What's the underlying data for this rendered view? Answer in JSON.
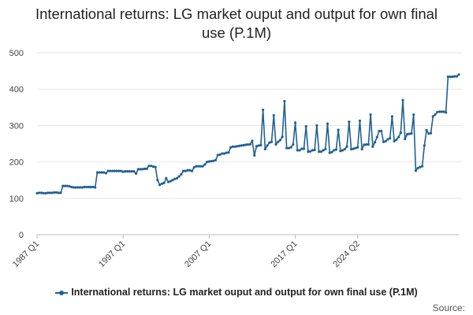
{
  "chart_data": {
    "type": "line",
    "title": "International returns: LG market ouput and output for own final use (P.1M)",
    "xlabel": "",
    "ylabel": "",
    "ylim": [
      0,
      500
    ],
    "yticks": [
      0,
      100,
      200,
      300,
      400,
      500
    ],
    "xtick_labels": [
      "1987 Q1",
      "1997 Q1",
      "2007 Q1",
      "2017 Q1",
      "2024 Q2"
    ],
    "x_start": "1987 Q1",
    "x_end": "2024 Q2",
    "grid": true,
    "legend_position": "bottom",
    "series": [
      {
        "name": "International returns: LG market ouput and output for own final use (P.1M)",
        "color": "#206095",
        "values": [
          114,
          115,
          115,
          114,
          114,
          115,
          115,
          115,
          116,
          116,
          115,
          115,
          134,
          134,
          134,
          133,
          131,
          130,
          130,
          130,
          130,
          130,
          131,
          131,
          131,
          131,
          131,
          130,
          171,
          171,
          171,
          171,
          169,
          175,
          175,
          175,
          175,
          175,
          175,
          175,
          173,
          174,
          174,
          174,
          174,
          174,
          168,
          180,
          180,
          180,
          181,
          181,
          189,
          189,
          187,
          186,
          150,
          137,
          140,
          142,
          155,
          145,
          147,
          150,
          153,
          155,
          160,
          166,
          175,
          175,
          177,
          177,
          175,
          185,
          188,
          188,
          188,
          188,
          193,
          200,
          201,
          202,
          203,
          205,
          219,
          220,
          223,
          223,
          225,
          226,
          240,
          242,
          242,
          243,
          244,
          245,
          246,
          247,
          248,
          248,
          258,
          218,
          243,
          245,
          246,
          343,
          235,
          245,
          253,
          255,
          328,
          248,
          255,
          260,
          269,
          367,
          238,
          238,
          240,
          248,
          308,
          232,
          232,
          236,
          236,
          298,
          228,
          229,
          232,
          233,
          300,
          228,
          228,
          232,
          235,
          305,
          225,
          227,
          232,
          234,
          288,
          230,
          232,
          235,
          242,
          310,
          235,
          236,
          238,
          240,
          313,
          235,
          247,
          248,
          248,
          330,
          242,
          254,
          268,
          285,
          285,
          255,
          257,
          262,
          265,
          325,
          257,
          261,
          268,
          280,
          370,
          263,
          276,
          277,
          278,
          330,
          176,
          183,
          186,
          188,
          245,
          287,
          278,
          279,
          325,
          330,
          337,
          338,
          338,
          338,
          336,
          434,
          434,
          434,
          435,
          435,
          440
        ]
      }
    ]
  },
  "source_label": "Source:"
}
